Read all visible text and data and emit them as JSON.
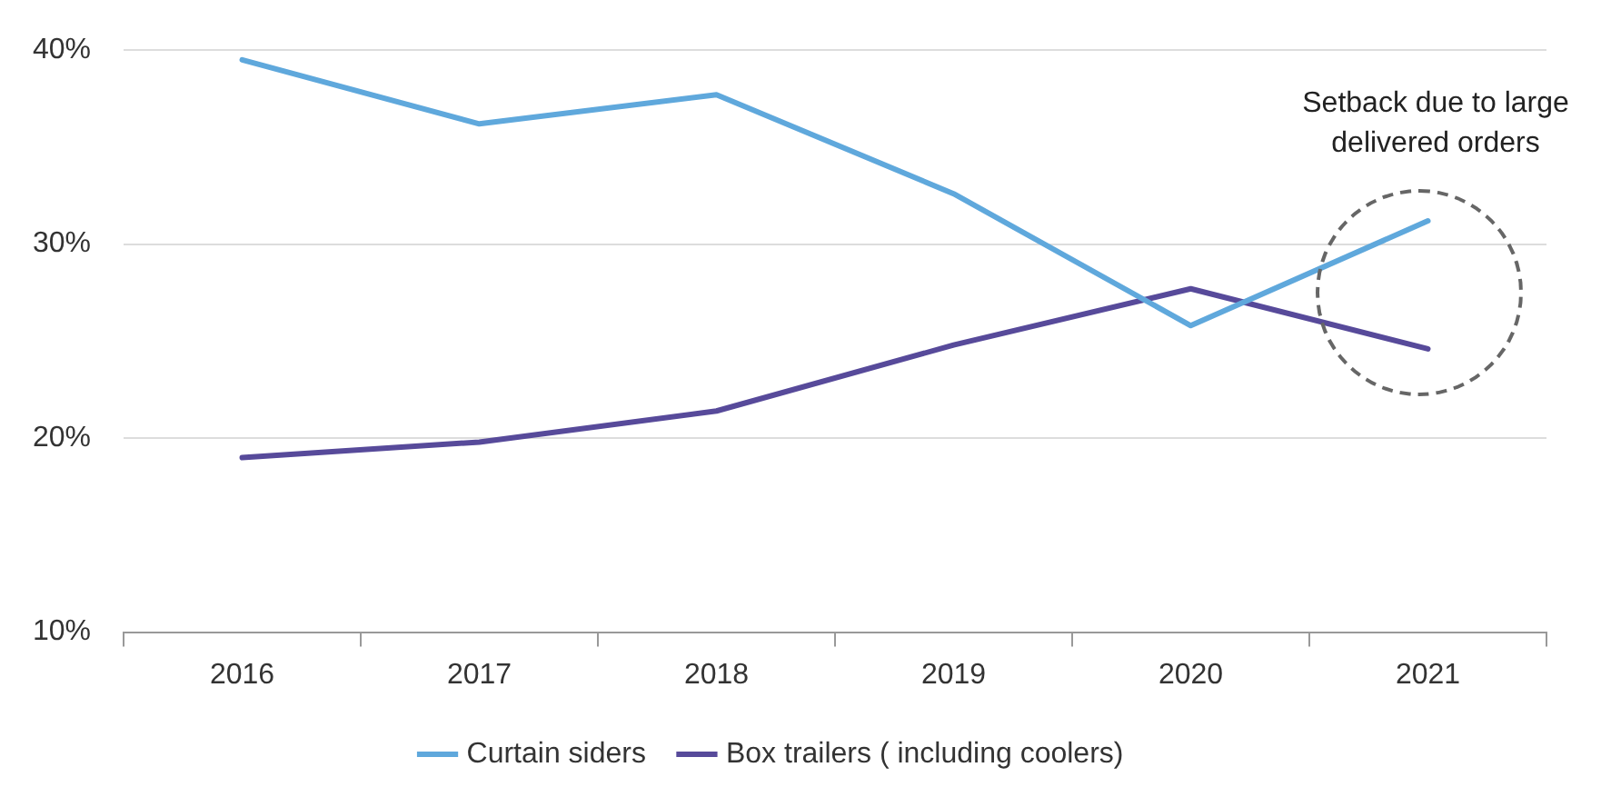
{
  "chart_data": {
    "type": "line",
    "categories": [
      "2016",
      "2017",
      "2018",
      "2019",
      "2020",
      "2021"
    ],
    "series": [
      {
        "name": "Curtain siders",
        "color": "#5fa8dc",
        "values": [
          39.5,
          36.2,
          37.7,
          32.6,
          25.8,
          31.2
        ]
      },
      {
        "name": "Box trailers ( including coolers)",
        "color": "#574a9a",
        "values": [
          19.0,
          19.8,
          21.4,
          24.8,
          27.7,
          24.6
        ]
      }
    ],
    "ylim": [
      10,
      40
    ],
    "yticks": [
      {
        "value": 10,
        "label": "10%"
      },
      {
        "value": 20,
        "label": "20%"
      },
      {
        "value": 30,
        "label": "30%"
      },
      {
        "value": 40,
        "label": "40%"
      }
    ],
    "grid": "y",
    "legend": "bottom",
    "marker": "none",
    "line_style": "solid",
    "annotations": [
      "Setback due to large delivered orders"
    ]
  }
}
